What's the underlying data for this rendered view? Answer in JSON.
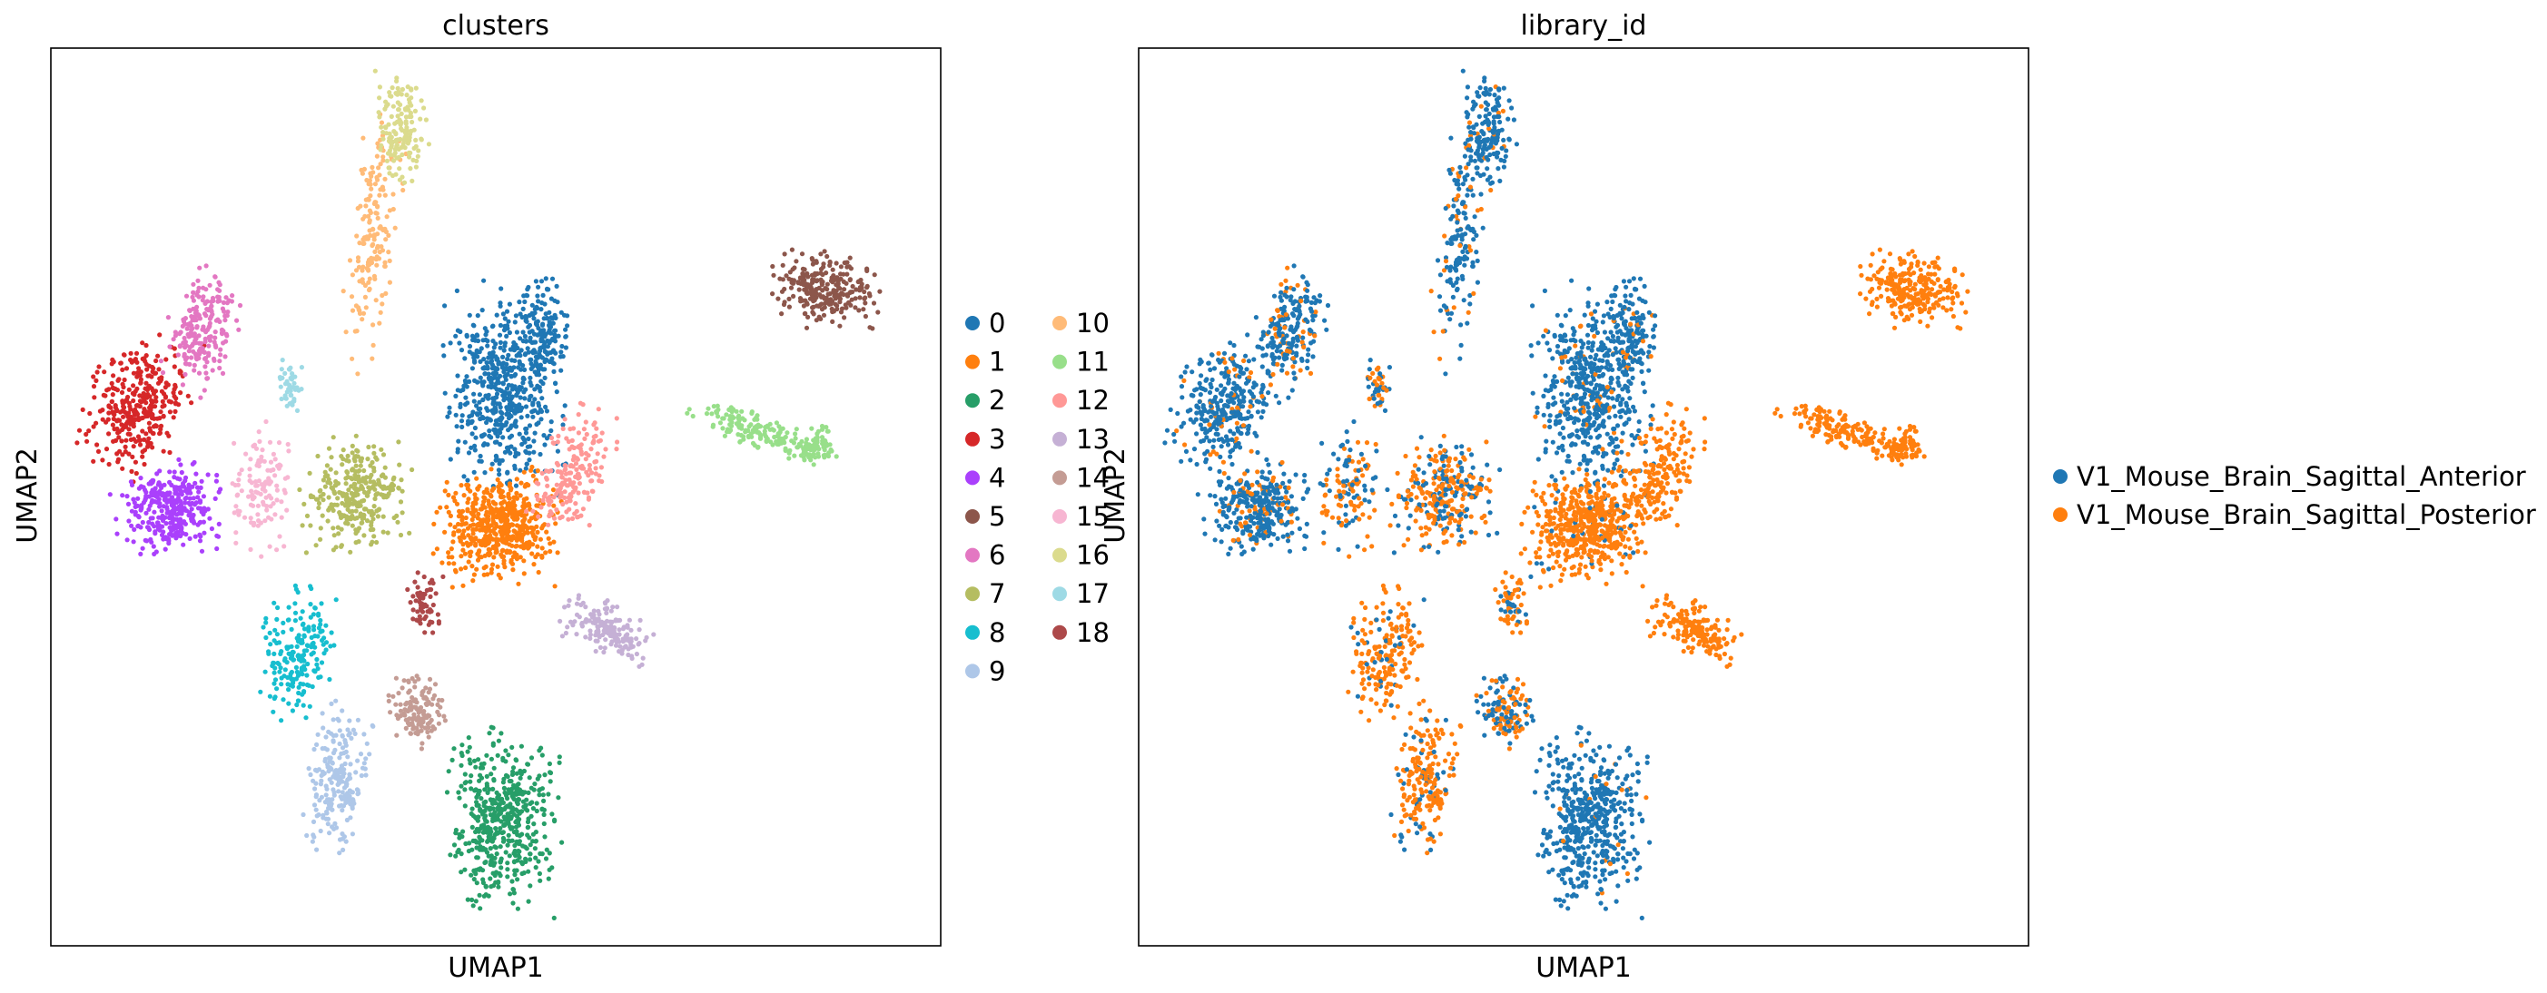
{
  "chart_data": [
    {
      "type": "scatter",
      "title": "clusters",
      "xlabel": "UMAP1",
      "ylabel": "UMAP2",
      "grid": false,
      "ticks": "none",
      "legend_placement": "right, two columns",
      "legend": [
        {
          "label": "0",
          "color": "#1f77b4"
        },
        {
          "label": "1",
          "color": "#ff7f0e"
        },
        {
          "label": "2",
          "color": "#279e68"
        },
        {
          "label": "3",
          "color": "#d62728"
        },
        {
          "label": "4",
          "color": "#aa40fc"
        },
        {
          "label": "5",
          "color": "#8c564b"
        },
        {
          "label": "6",
          "color": "#e377c2"
        },
        {
          "label": "7",
          "color": "#b5bd61"
        },
        {
          "label": "8",
          "color": "#17becf"
        },
        {
          "label": "9",
          "color": "#aec7e8"
        },
        {
          "label": "10",
          "color": "#ffbb78"
        },
        {
          "label": "11",
          "color": "#98df8a"
        },
        {
          "label": "12",
          "color": "#ff9896"
        },
        {
          "label": "13",
          "color": "#c5b0d5"
        },
        {
          "label": "14",
          "color": "#c49c94"
        },
        {
          "label": "15",
          "color": "#f7b6d2"
        },
        {
          "label": "16",
          "color": "#dbdb8d"
        },
        {
          "label": "17",
          "color": "#9edae5"
        },
        {
          "label": "18",
          "color": "#ad494a"
        }
      ]
    },
    {
      "type": "scatter",
      "title": "library_id",
      "xlabel": "UMAP1",
      "ylabel": "UMAP2",
      "grid": false,
      "ticks": "none",
      "legend_placement": "right",
      "legend": [
        {
          "label": "V1_Mouse_Brain_Sagittal_Anterior",
          "color": "#1f77b4"
        },
        {
          "label": "V1_Mouse_Brain_Sagittal_Posterior",
          "color": "#ff7f0e"
        }
      ]
    }
  ]
}
